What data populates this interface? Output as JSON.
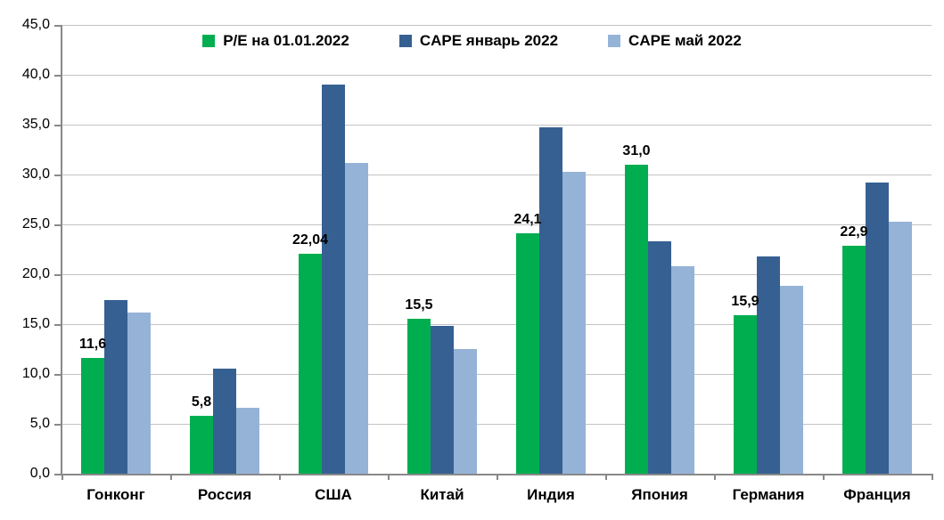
{
  "chart_data": {
    "type": "bar",
    "title": "",
    "categories": [
      "Гонконг",
      "Россия",
      "США",
      "Китай",
      "Индия",
      "Япония",
      "Германия",
      "Франция"
    ],
    "series": [
      {
        "name": "P/E на 01.01.2022",
        "color": "#00AE50",
        "values": [
          11.6,
          5.8,
          22.04,
          15.5,
          24.1,
          31.0,
          15.9,
          22.9
        ],
        "data_labels": [
          "11,6",
          "5,8",
          "22,04",
          "15,5",
          "24,1",
          "31,0",
          "15,9",
          "22,9"
        ]
      },
      {
        "name": "CAPE январь 2022",
        "color": "#366092",
        "values": [
          17.4,
          10.5,
          39.0,
          14.8,
          34.7,
          23.3,
          21.8,
          29.2
        ]
      },
      {
        "name": "CAPE май 2022",
        "color": "#95B3D7",
        "values": [
          16.2,
          6.6,
          31.2,
          12.5,
          30.3,
          20.8,
          18.8,
          25.3
        ]
      }
    ],
    "ylim": [
      0,
      45
    ],
    "ytick_step": 5,
    "ytick_labels": [
      "0,0",
      "5,0",
      "10,0",
      "15,0",
      "20,0",
      "25,0",
      "30,0",
      "35,0",
      "40,0",
      "45,0"
    ],
    "grid": true,
    "legend_position": "top-center",
    "style": {
      "gridline_color": "#C3C3C3",
      "axis_color": "#898989",
      "background_color": "#FFFFFF",
      "text_color": "#000000"
    }
  }
}
